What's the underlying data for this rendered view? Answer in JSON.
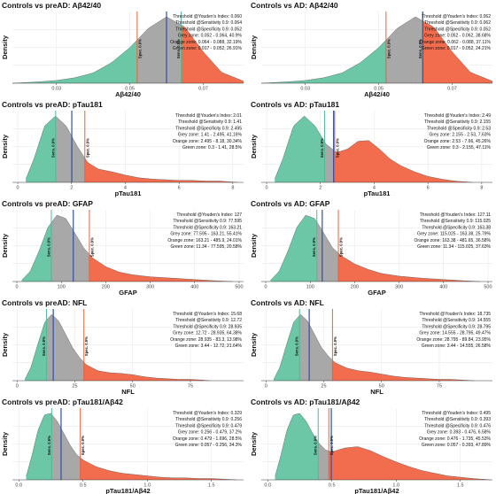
{
  "colors": {
    "green": "#6cc7a7",
    "grey": "#a8a8a8",
    "orange": "#f26d4e",
    "youden_line": "#2f4faa",
    "spec_line": "#e8603c",
    "grid": "#e4e4e4"
  },
  "density_label": "Density",
  "sens_label": "Sens. 0.9%",
  "spec_label": "Spec. 0.9%",
  "chart_data": [
    {
      "type": "area",
      "title": "Controls vs preAD: Aβ42/40",
      "xlabel": "Aβ42/40",
      "ylabel": "Density",
      "xlim": [
        0.018,
        0.081
      ],
      "x_ticks": [
        0.03,
        0.05,
        0.07
      ],
      "tick_decimals": 2,
      "thresholds": {
        "youden": 0.06,
        "sensitivity": 0.064,
        "specificity": 0.052
      },
      "annotations": [
        "Threshold @Youden's Index: 0.060",
        "Threshold @Sensitivity 0.9: 0.064",
        "Threshold @Specificity 0.9: 0.052",
        "Grey zone: 0.052 - 0.064, 40.9%",
        "Orange zone: 0.064 - 0.088, 32.19%",
        "Green zone: 0.017 - 0.052, 26.91%"
      ],
      "curve": {
        "x": [
          0.018,
          0.025,
          0.03,
          0.035,
          0.04,
          0.045,
          0.05,
          0.055,
          0.06,
          0.065,
          0.07,
          0.075,
          0.081
        ],
        "y": [
          0.0,
          0.02,
          0.04,
          0.08,
          0.15,
          0.3,
          0.52,
          0.8,
          0.97,
          0.82,
          0.46,
          0.16,
          0.03
        ]
      }
    },
    {
      "type": "area",
      "title": "Controls vs AD: Aβ42/40",
      "xlabel": "Aβ42/40",
      "ylabel": "Density",
      "xlim": [
        0.018,
        0.081
      ],
      "x_ticks": [
        0.03,
        0.05,
        0.07
      ],
      "tick_decimals": 2,
      "thresholds": {
        "youden": 0.062,
        "sensitivity": 0.062,
        "specificity": 0.052
      },
      "annotations": [
        "Threshold @Youden's Index: 0.062",
        "Threshold @Sensitivity 0.9: 0.062",
        "Threshold @Specificity 0.9: 0.052",
        "Grey zone: 0.052 - 0.062, 38.68%",
        "Orange zone: 0.062 - 0.088, 37.11%",
        "Green zone: 0.017 - 0.052, 24.21%"
      ],
      "curve": {
        "x": [
          0.018,
          0.025,
          0.03,
          0.035,
          0.04,
          0.045,
          0.05,
          0.055,
          0.06,
          0.065,
          0.07,
          0.075,
          0.081
        ],
        "y": [
          0.0,
          0.02,
          0.04,
          0.08,
          0.15,
          0.3,
          0.52,
          0.8,
          0.97,
          0.82,
          0.46,
          0.16,
          0.03
        ]
      }
    },
    {
      "type": "area",
      "title": "Controls vs preAD: pTau181",
      "xlabel": "pTau181",
      "ylabel": "Density",
      "xlim": [
        -0.2,
        8.4
      ],
      "x_ticks": [
        0,
        2,
        4,
        6,
        8
      ],
      "tick_decimals": 0,
      "thresholds": {
        "youden": 2.01,
        "sensitivity": 1.41,
        "specificity": 2.495
      },
      "annotations": [
        "Threshold @Youden's Index: 2.01",
        "Threshold @Sensitivity 0.9: 1.41",
        "Threshold @Specificity 0.9: 2.495",
        "Grey zone: 1.41 - 2.495, 41.16%",
        "Orange zone: 2.495 - 8.18, 30.34%",
        "Green zone: 0.3 - 1.41, 28.5%"
      ],
      "curve": {
        "x": [
          0.3,
          0.6,
          1.0,
          1.4,
          1.8,
          2.2,
          2.6,
          3.0,
          3.5,
          4.0,
          4.5,
          5.0,
          5.5,
          6.0,
          6.5,
          7.0,
          7.5,
          8.18
        ],
        "y": [
          0.05,
          0.35,
          0.85,
          1.0,
          0.85,
          0.55,
          0.3,
          0.2,
          0.16,
          0.11,
          0.07,
          0.05,
          0.04,
          0.03,
          0.03,
          0.02,
          0.02,
          0.0
        ]
      }
    },
    {
      "type": "area",
      "title": "Controls vs AD: pTau181",
      "xlabel": "pTau181",
      "ylabel": "Density",
      "xlim": [
        -0.2,
        8.4
      ],
      "x_ticks": [
        0,
        2,
        4,
        6,
        8
      ],
      "tick_decimals": 0,
      "thresholds": {
        "youden": 2.49,
        "sensitivity": 2.155,
        "specificity": 2.53
      },
      "annotations": [
        "Threshold @Youden's Index: 2.49",
        "Threshold @Sensitivity 0.9: 2.155",
        "Threshold @Specificity 0.9: 2.53",
        "Grey zone: 2.155 - 2.53, 7.63%",
        "Orange zone: 2.53 - 7.66, 45.26%",
        "Green zone: 0.3 - 2.155, 47.11%"
      ],
      "curve": {
        "x": [
          0.3,
          0.6,
          1.0,
          1.4,
          1.8,
          2.2,
          2.6,
          3.0,
          3.4,
          3.8,
          4.2,
          4.6,
          5.0,
          5.5,
          6.0,
          6.5,
          7.0,
          7.66
        ],
        "y": [
          0.05,
          0.35,
          0.85,
          1.0,
          0.85,
          0.58,
          0.45,
          0.5,
          0.62,
          0.63,
          0.5,
          0.35,
          0.25,
          0.16,
          0.09,
          0.05,
          0.02,
          0.0
        ]
      }
    },
    {
      "type": "area",
      "title": "Controls vs preAD: GFAP",
      "xlabel": "GFAP",
      "ylabel": "Density",
      "xlim": [
        -10,
        510
      ],
      "x_ticks": [
        0,
        100,
        200,
        300,
        400,
        500
      ],
      "tick_decimals": 0,
      "thresholds": {
        "youden": 127,
        "sensitivity": 77.595,
        "specificity": 163.21
      },
      "annotations": [
        "Threshold @Youden's Index: 127",
        "Threshold @Sensitivity 0.9: 77.595",
        "Threshold @Specificity 0.9: 163.21",
        "Grey zone: 77.595 - 163.21, 55.41%",
        "Orange zone: 163.21 - 485.9, 24.01%",
        "Green zone: 11.34 - 77.595, 20.58%"
      ],
      "curve": {
        "x": [
          11,
          30,
          50,
          70,
          90,
          110,
          130,
          150,
          170,
          200,
          230,
          260,
          300,
          350,
          400,
          450,
          486
        ],
        "y": [
          0.02,
          0.15,
          0.45,
          0.8,
          0.98,
          0.93,
          0.72,
          0.5,
          0.35,
          0.22,
          0.14,
          0.1,
          0.07,
          0.05,
          0.03,
          0.01,
          0.0
        ]
      }
    },
    {
      "type": "area",
      "title": "Controls vs AD: GFAP",
      "xlabel": "GFAP",
      "ylabel": "Density",
      "xlim": [
        -10,
        510
      ],
      "x_ticks": [
        0,
        100,
        200,
        300,
        400,
        500
      ],
      "tick_decimals": 0,
      "thresholds": {
        "youden": 127.11,
        "sensitivity": 115.025,
        "specificity": 163.38
      },
      "annotations": [
        "Threshold @Youden's Index: 127.11",
        "Threshold @Sensitivity 0.9: 115.025",
        "Threshold @Specificity 0.9: 163.38",
        "Grey zone: 115.025 - 163.38, 25.79%",
        "Orange zone: 163.38 - 481.65, 36.58%",
        "Green zone: 11.34 - 115.025, 37.63%"
      ],
      "curve": {
        "x": [
          11,
          30,
          50,
          70,
          90,
          110,
          130,
          150,
          170,
          200,
          230,
          260,
          300,
          350,
          400,
          450,
          482
        ],
        "y": [
          0.02,
          0.15,
          0.45,
          0.8,
          0.98,
          0.93,
          0.72,
          0.5,
          0.38,
          0.26,
          0.18,
          0.12,
          0.08,
          0.05,
          0.03,
          0.01,
          0.0
        ]
      }
    },
    {
      "type": "area",
      "title": "Controls vs preAD: NFL",
      "xlabel": "NFL",
      "ylabel": "Density",
      "xlim": [
        -2,
        98
      ],
      "x_ticks": [
        0,
        25,
        50,
        75
      ],
      "tick_decimals": 0,
      "thresholds": {
        "youden": 15.68,
        "sensitivity": 12.72,
        "specificity": 28.935
      },
      "annotations": [
        "Threshold @Youden's Index: 15.68",
        "Threshold @Sensitivity 0.9: 12.72",
        "Threshold @Specificity 0.9: 28.935",
        "Grey zone: 12.72 - 28.935, 64.38%",
        "Orange zone: 28.935 - 83.3, 13.98%",
        "Green zone: 3.44 - 12.72, 21.64%"
      ],
      "curve": {
        "x": [
          3.4,
          6,
          9,
          12,
          15,
          18,
          21,
          24,
          27,
          30,
          35,
          40,
          45,
          50,
          55,
          60,
          65,
          70,
          75,
          80,
          83.3
        ],
        "y": [
          0.02,
          0.2,
          0.55,
          0.88,
          1.0,
          0.9,
          0.7,
          0.5,
          0.35,
          0.24,
          0.15,
          0.12,
          0.11,
          0.09,
          0.06,
          0.04,
          0.03,
          0.02,
          0.02,
          0.01,
          0.0
        ]
      }
    },
    {
      "type": "area",
      "title": "Controls vs AD: NFL",
      "xlabel": "NFL",
      "ylabel": "Density",
      "xlim": [
        -2,
        98
      ],
      "x_ticks": [
        0,
        25,
        50,
        75
      ],
      "tick_decimals": 0,
      "thresholds": {
        "youden": 18.735,
        "sensitivity": 14.555,
        "specificity": 28.795
      },
      "annotations": [
        "Threshold @Youden's Index: 18.735",
        "Threshold @Sensitivity 0.9: 14.555",
        "Threshold @Specificity 0.9: 28.795",
        "Grey zone: 14.555 - 28.795, 49.47%",
        "Orange zone: 28.795 - 89.84, 23.95%",
        "Green zone: 3.44 - 14.555, 26.58%"
      ],
      "curve": {
        "x": [
          3.4,
          6,
          9,
          12,
          15,
          18,
          21,
          24,
          27,
          30,
          35,
          40,
          45,
          50,
          55,
          60,
          65,
          70,
          75,
          80,
          85,
          89.8
        ],
        "y": [
          0.02,
          0.2,
          0.55,
          0.88,
          1.0,
          0.9,
          0.7,
          0.5,
          0.37,
          0.27,
          0.19,
          0.15,
          0.13,
          0.1,
          0.07,
          0.05,
          0.04,
          0.03,
          0.02,
          0.02,
          0.01,
          0.0
        ]
      }
    },
    {
      "type": "area",
      "title": "Controls vs preAD: pTau181/Aβ42",
      "xlabel": "pTau181/Aβ42",
      "ylabel": "Density",
      "xlim": [
        -0.05,
        1.75
      ],
      "x_ticks": [
        0.0,
        0.5,
        1.0,
        1.5
      ],
      "tick_decimals": 1,
      "thresholds": {
        "youden": 0.329,
        "sensitivity": 0.256,
        "specificity": 0.479
      },
      "annotations": [
        "Threshold @Youden's Index: 0.329",
        "Threshold @Sensitivity 0.9: 0.256",
        "Threshold @Specificity 0.9: 0.479",
        "Grey zone: 0.256 - 0.479, 37.2%",
        "Orange zone: 0.479 - 1.696, 28.5%",
        "Green zone: 0.057 - 0.256, 34.3%"
      ],
      "curve": {
        "x": [
          0.057,
          0.1,
          0.15,
          0.2,
          0.25,
          0.3,
          0.35,
          0.4,
          0.45,
          0.5,
          0.6,
          0.7,
          0.8,
          0.9,
          1.0,
          1.1,
          1.2,
          1.3,
          1.4,
          1.5,
          1.6,
          1.696
        ],
        "y": [
          0.05,
          0.35,
          0.75,
          0.98,
          1.0,
          0.88,
          0.7,
          0.52,
          0.38,
          0.3,
          0.2,
          0.14,
          0.1,
          0.08,
          0.06,
          0.04,
          0.03,
          0.03,
          0.02,
          0.02,
          0.01,
          0.0
        ]
      }
    },
    {
      "type": "area",
      "title": "Controls vs AD: pTau181/Aβ42",
      "xlabel": "pTau181/Aβ42",
      "ylabel": "Density",
      "xlim": [
        -0.05,
        1.75
      ],
      "x_ticks": [
        0.0,
        0.5,
        1.0,
        1.5
      ],
      "tick_decimals": 1,
      "thresholds": {
        "youden": 0.495,
        "sensitivity": 0.393,
        "specificity": 0.476
      },
      "annotations": [
        "Threshold @Youden's Index: 0.495",
        "Threshold @Sensitivity 0.9: 0.393",
        "Threshold @Specificity 0.9: 0.476",
        "Grey zone: 0.393 - 0.476, 6.58%",
        "Orange zone: 0.476 - 1.735, 45.53%",
        "Green zone: 0.057 - 0.393, 47.89%"
      ],
      "curve": {
        "x": [
          0.057,
          0.1,
          0.15,
          0.2,
          0.25,
          0.3,
          0.35,
          0.4,
          0.45,
          0.5,
          0.55,
          0.6,
          0.7,
          0.8,
          0.9,
          1.0,
          1.1,
          1.2,
          1.3,
          1.4,
          1.5,
          1.6,
          1.735
        ],
        "y": [
          0.05,
          0.35,
          0.75,
          0.98,
          1.0,
          0.88,
          0.7,
          0.55,
          0.45,
          0.42,
          0.45,
          0.48,
          0.5,
          0.44,
          0.35,
          0.27,
          0.2,
          0.14,
          0.1,
          0.06,
          0.04,
          0.02,
          0.0
        ]
      }
    }
  ]
}
